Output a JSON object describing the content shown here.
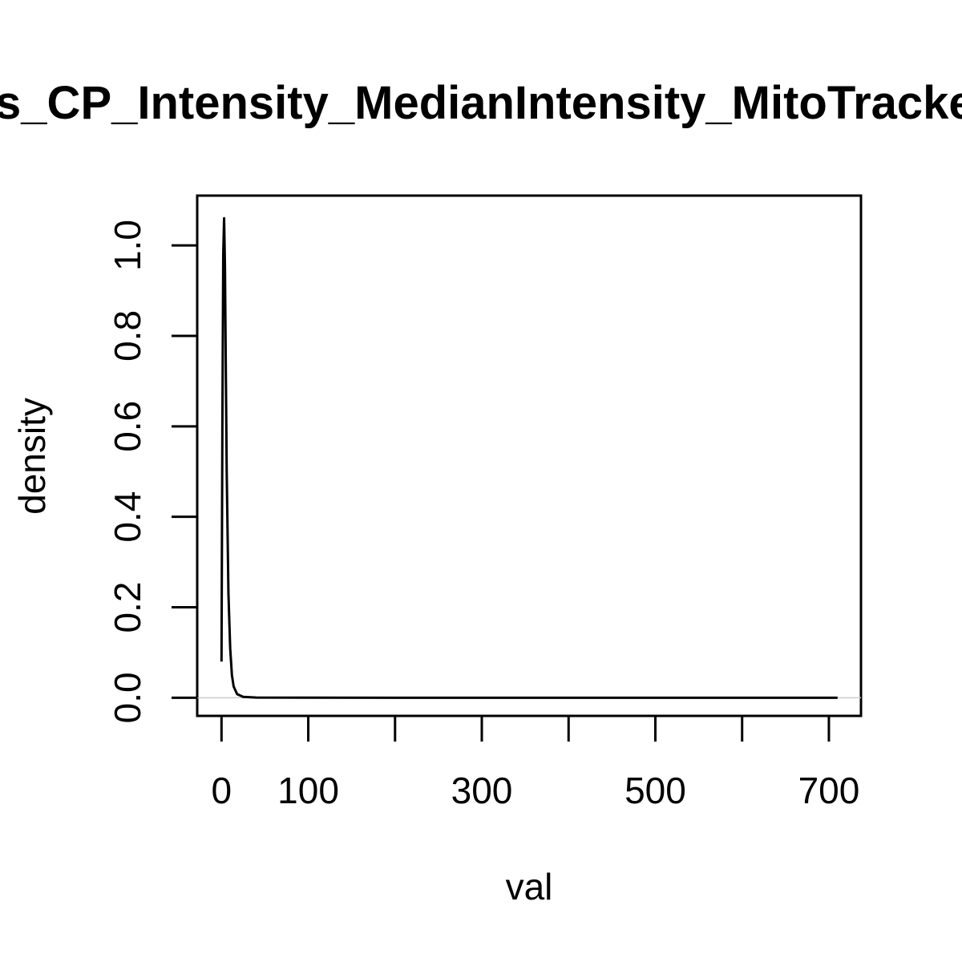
{
  "chart_data": {
    "type": "line",
    "title": "lls_CP_Intensity_MedianIntensity_MitoTracker",
    "xlabel": "val",
    "ylabel": "density",
    "x_ticks": [
      0,
      100,
      200,
      300,
      400,
      500,
      600,
      700
    ],
    "x_tick_labels": [
      "0",
      "100",
      "",
      "300",
      "",
      "500",
      "",
      "700"
    ],
    "y_ticks": [
      0.0,
      0.2,
      0.4,
      0.6,
      0.8,
      1.0
    ],
    "y_tick_labels": [
      "0.0",
      "0.2",
      "0.4",
      "0.6",
      "0.8",
      "1.0"
    ],
    "xlim": [
      -28,
      737
    ],
    "ylim": [
      -0.04,
      1.11
    ],
    "zero_line": true,
    "grid": false,
    "series": [
      {
        "color": "#000000",
        "x": [
          0.0,
          1.0,
          2.0,
          3.0,
          4.0,
          5.0,
          6.0,
          8.0,
          10.0,
          12.0,
          14.0,
          18.0,
          25.0,
          40.0,
          100.0,
          200.0,
          300.0,
          400.0,
          500.0,
          600.0,
          700.0,
          710.0
        ],
        "y": [
          0.08,
          0.6,
          0.98,
          1.06,
          0.95,
          0.72,
          0.5,
          0.23,
          0.11,
          0.05,
          0.025,
          0.008,
          0.002,
          0.0005,
          0.0002,
          0.0001,
          0.0001,
          0.0001,
          0.0001,
          0.0001,
          0.0001,
          0.0
        ]
      }
    ]
  }
}
